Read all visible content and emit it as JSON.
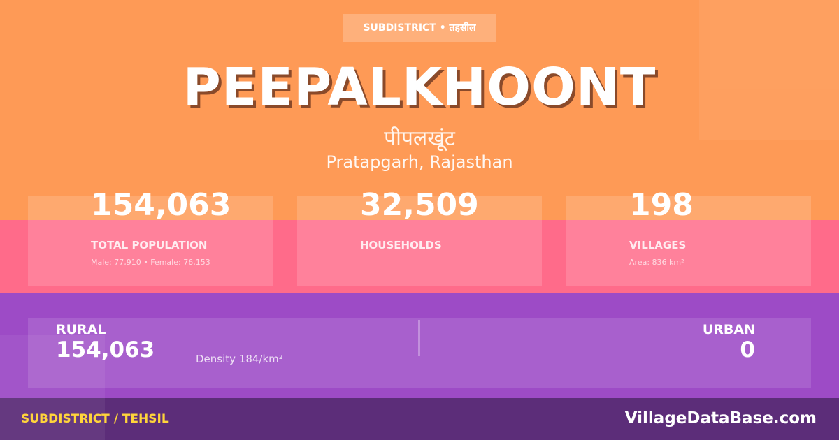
{
  "badge": "SUBDISTRICT • तहसील",
  "title": "PEEPALKHOONT",
  "title_hindi": "पीपलखूंट",
  "location": "Pratapgarh, Rajasthan",
  "stats": [
    {
      "value": "154,063",
      "label": "TOTAL POPULATION",
      "sub": "Male: 77,910 • Female: 76,153"
    },
    {
      "value": "32,509",
      "label": "HOUSEHOLDS",
      "sub": ""
    },
    {
      "value": "198",
      "label": "VILLAGES",
      "sub": "Area: 836 km²"
    }
  ],
  "rural": {
    "label": "RURAL",
    "value": "154,063",
    "density": "Density 184/km²"
  },
  "urban": {
    "label": "URBAN",
    "value": "0"
  },
  "footer": {
    "left": "SUBDISTRICT / TEHSIL",
    "right": "VillageDataBase.com"
  },
  "colors": {
    "orange": "#fe9a56",
    "pink": "#ff6b8a",
    "purple": "#9d4bc6",
    "dark_purple": "#5c2d79",
    "yellow": "#ffd43b"
  }
}
